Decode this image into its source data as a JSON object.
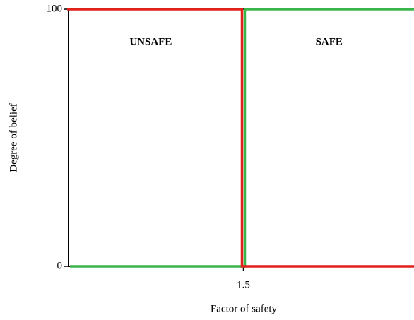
{
  "chart_data": {
    "type": "line",
    "x_label": "Factor of safety",
    "y_label": "Degree of belief",
    "annotations": [
      "UNSAFE",
      "SAFE"
    ],
    "x": [
      1,
      1.5,
      1.5,
      2
    ],
    "series": [
      {
        "color": "#39b54a",
        "values": [
          0,
          0,
          100,
          100
        ]
      },
      {
        "color": "#e0201b",
        "values": [
          100,
          100,
          0,
          0
        ]
      }
    ],
    "xlim": [
      1,
      2
    ],
    "xticks": [
      1.5
    ],
    "ylim": [
      0,
      100
    ],
    "yticks": [
      0,
      100
    ]
  }
}
